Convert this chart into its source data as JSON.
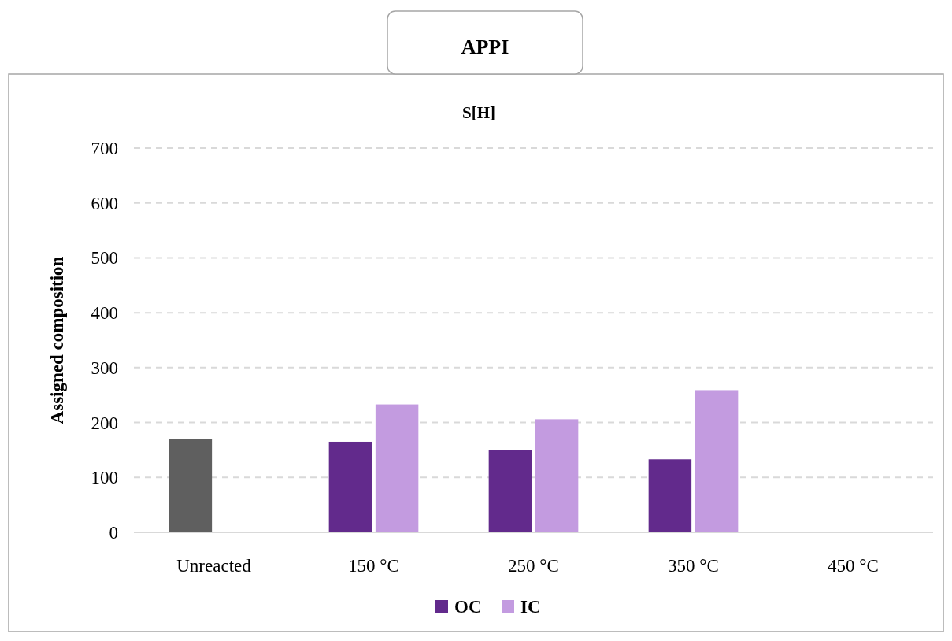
{
  "chart_data": {
    "type": "bar",
    "title": "APPI",
    "subtitle": "S[H]",
    "ylabel": "Assigned composition",
    "categories": [
      "Unreacted",
      "150 °C",
      "250 °C",
      "350 °C",
      "450 °C"
    ],
    "series": [
      {
        "name": "OC",
        "color": "#622a8c",
        "colors": [
          "#5f5f5f",
          "#622a8c",
          "#622a8c",
          "#622a8c",
          "#622a8c"
        ],
        "values": [
          170,
          165,
          150,
          133,
          null
        ]
      },
      {
        "name": "IC",
        "color": "#c39be0",
        "values": [
          null,
          233,
          206,
          259,
          null
        ]
      }
    ],
    "ylim": [
      0,
      700
    ],
    "yticks": [
      0,
      100,
      200,
      300,
      400,
      500,
      600,
      700
    ],
    "grid": "y",
    "legend": "bottom"
  }
}
